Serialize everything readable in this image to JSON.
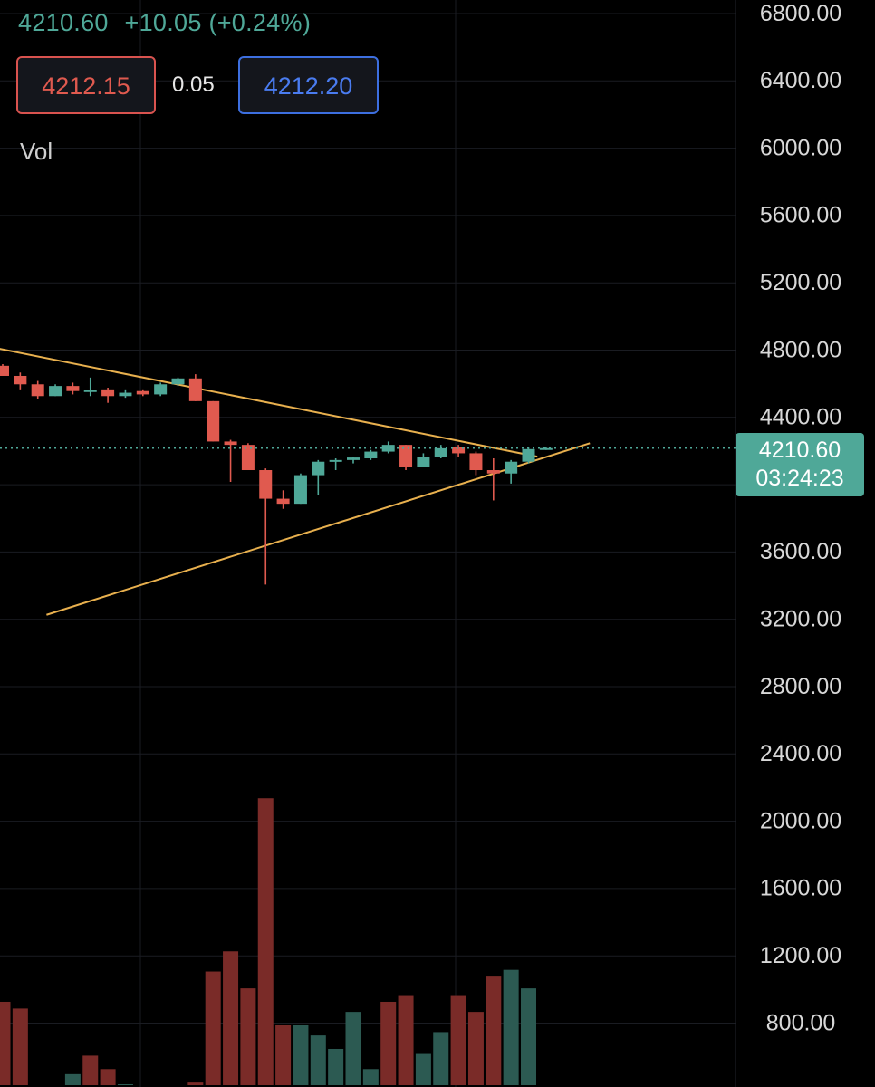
{
  "header": {
    "last_price": "4210.60",
    "change": "+10.05 (+0.24%)",
    "bid": "4212.15",
    "spread": "0.05",
    "ask": "4212.20",
    "volume_label": "Vol"
  },
  "current_price_tag": {
    "price": "4210.60",
    "countdown": "03:24:23"
  },
  "colors": {
    "background": "#000000",
    "up": "#4fa898",
    "down": "#e05a4f",
    "volume_up": "#2c5a52",
    "volume_down": "#7a2b28",
    "trendline": "#e8b04e",
    "grid": "#1a1c22",
    "axis_text": "#d8d8d8"
  },
  "chart_data": {
    "type": "candlestick",
    "price_axis": {
      "ticks": [
        "6800.00",
        "6400.00",
        "6000.00",
        "5600.00",
        "5200.00",
        "4800.00",
        "4400.00",
        "3600.00",
        "3200.00",
        "2800.00",
        "2400.00",
        "2000.00",
        "1600.00",
        "1200.00",
        "800.00"
      ],
      "tick_values": [
        6800,
        6400,
        6000,
        5600,
        5200,
        4800,
        4400,
        3600,
        3200,
        2800,
        2400,
        2000,
        1600,
        1200,
        800
      ],
      "current_price": 4210.6
    },
    "candles": [
      {
        "o": 4700,
        "h": 4710,
        "l": 4640,
        "c": 4640
      },
      {
        "o": 4640,
        "h": 4660,
        "l": 4560,
        "c": 4590
      },
      {
        "o": 4590,
        "h": 4610,
        "l": 4500,
        "c": 4520
      },
      {
        "o": 4520,
        "h": 4590,
        "l": 4520,
        "c": 4580
      },
      {
        "o": 4580,
        "h": 4600,
        "l": 4530,
        "c": 4550
      },
      {
        "o": 4550,
        "h": 4630,
        "l": 4520,
        "c": 4555
      },
      {
        "o": 4560,
        "h": 4570,
        "l": 4480,
        "c": 4520
      },
      {
        "o": 4520,
        "h": 4560,
        "l": 4510,
        "c": 4540
      },
      {
        "o": 4550,
        "h": 4560,
        "l": 4520,
        "c": 4530
      },
      {
        "o": 4530,
        "h": 4600,
        "l": 4520,
        "c": 4590
      },
      {
        "o": 4590,
        "h": 4630,
        "l": 4580,
        "c": 4625
      },
      {
        "o": 4625,
        "h": 4650,
        "l": 4490,
        "c": 4490
      },
      {
        "o": 4490,
        "h": 4490,
        "l": 4250,
        "c": 4250
      },
      {
        "o": 4250,
        "h": 4260,
        "l": 4010,
        "c": 4230
      },
      {
        "o": 4230,
        "h": 4240,
        "l": 4080,
        "c": 4080
      },
      {
        "o": 4080,
        "h": 4090,
        "l": 3400,
        "c": 3910
      },
      {
        "o": 3910,
        "h": 3960,
        "l": 3850,
        "c": 3880
      },
      {
        "o": 3880,
        "h": 4060,
        "l": 3880,
        "c": 4050
      },
      {
        "o": 4050,
        "h": 4140,
        "l": 3930,
        "c": 4130
      },
      {
        "o": 4130,
        "h": 4150,
        "l": 4080,
        "c": 4140
      },
      {
        "o": 4140,
        "h": 4160,
        "l": 4120,
        "c": 4155
      },
      {
        "o": 4150,
        "h": 4200,
        "l": 4140,
        "c": 4190
      },
      {
        "o": 4190,
        "h": 4250,
        "l": 4180,
        "c": 4230
      },
      {
        "o": 4230,
        "h": 4230,
        "l": 4080,
        "c": 4100
      },
      {
        "o": 4100,
        "h": 4180,
        "l": 4100,
        "c": 4160
      },
      {
        "o": 4160,
        "h": 4230,
        "l": 4150,
        "c": 4210
      },
      {
        "o": 4215,
        "h": 4230,
        "l": 4160,
        "c": 4180
      },
      {
        "o": 4180,
        "h": 4190,
        "l": 4050,
        "c": 4080
      },
      {
        "o": 4080,
        "h": 4150,
        "l": 3900,
        "c": 4060
      },
      {
        "o": 4060,
        "h": 4140,
        "l": 4000,
        "c": 4130
      },
      {
        "o": 4130,
        "h": 4220,
        "l": 4120,
        "c": 4205
      },
      {
        "o": 4200,
        "h": 4220,
        "l": 4200,
        "c": 4210.6
      }
    ],
    "volume": {
      "values": [
        920,
        880,
        300,
        390,
        490,
        600,
        520,
        430,
        210,
        330,
        320,
        440,
        1100,
        1220,
        1000,
        2130,
        780,
        780,
        720,
        640,
        860,
        520,
        920,
        960,
        610,
        740,
        960,
        860,
        1070,
        1110,
        1000,
        270
      ],
      "up": [
        false,
        false,
        true,
        false,
        true,
        false,
        false,
        true,
        false,
        true,
        true,
        false,
        false,
        false,
        false,
        false,
        false,
        true,
        true,
        true,
        true,
        true,
        false,
        false,
        true,
        true,
        false,
        false,
        false,
        true,
        true,
        true
      ]
    },
    "trendlines": [
      {
        "from": {
          "bar": -2.5,
          "price": 4850
        },
        "to": {
          "bar": 30.5,
          "price": 4160
        }
      },
      {
        "from": {
          "bar": 2.5,
          "price": 3220
        },
        "to": {
          "bar": 33.5,
          "price": 4240
        }
      }
    ]
  }
}
